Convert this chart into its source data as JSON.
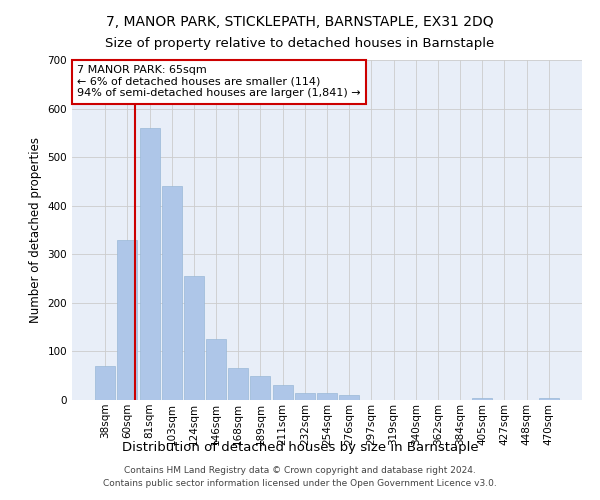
{
  "title": "7, MANOR PARK, STICKLEPATH, BARNSTAPLE, EX31 2DQ",
  "subtitle": "Size of property relative to detached houses in Barnstaple",
  "xlabel": "Distribution of detached houses by size in Barnstaple",
  "ylabel": "Number of detached properties",
  "categories": [
    "38sqm",
    "60sqm",
    "81sqm",
    "103sqm",
    "124sqm",
    "146sqm",
    "168sqm",
    "189sqm",
    "211sqm",
    "232sqm",
    "254sqm",
    "276sqm",
    "297sqm",
    "319sqm",
    "340sqm",
    "362sqm",
    "384sqm",
    "405sqm",
    "427sqm",
    "448sqm",
    "470sqm"
  ],
  "values": [
    70,
    330,
    560,
    440,
    255,
    125,
    65,
    50,
    30,
    15,
    15,
    10,
    0,
    0,
    0,
    0,
    0,
    5,
    0,
    0,
    5
  ],
  "bar_color": "#aec6e8",
  "bar_edgecolor": "#9ab8d8",
  "grid_color": "#cccccc",
  "background_color": "#e8eef8",
  "vline_x": 1.35,
  "vline_color": "#cc0000",
  "annotation_text": "7 MANOR PARK: 65sqm\n← 6% of detached houses are smaller (114)\n94% of semi-detached houses are larger (1,841) →",
  "annotation_box_facecolor": "#ffffff",
  "annotation_box_edgecolor": "#cc0000",
  "ylim": [
    0,
    700
  ],
  "yticks": [
    0,
    100,
    200,
    300,
    400,
    500,
    600,
    700
  ],
  "footer": "Contains HM Land Registry data © Crown copyright and database right 2024.\nContains public sector information licensed under the Open Government Licence v3.0.",
  "title_fontsize": 10,
  "subtitle_fontsize": 9.5,
  "tick_fontsize": 7.5,
  "ylabel_fontsize": 8.5,
  "xlabel_fontsize": 9.5,
  "annotation_fontsize": 8,
  "footer_fontsize": 6.5
}
